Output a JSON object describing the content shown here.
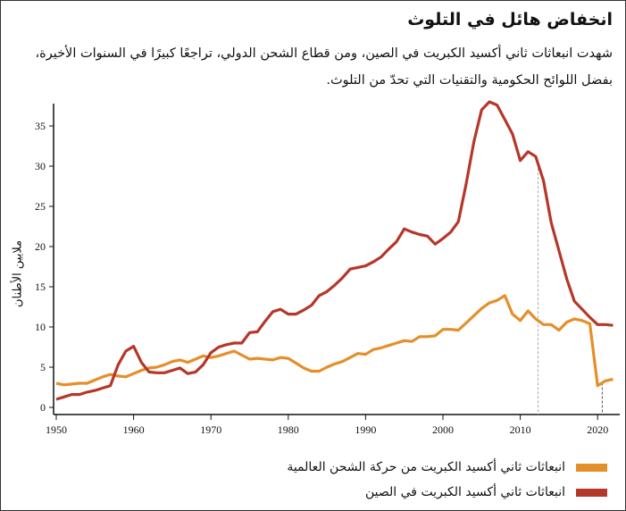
{
  "title": "انخفاض هائل في التلوث",
  "subtitle": "شهدت انبعاثات ثاني أكسيد الكبريت في الصين، ومن قطاع الشحن الدولي، تراجعًا كبيرًا في السنوات الأخيرة، بفضل اللوائح الحكومية والتقنيات التي تحدّ من التلوث.",
  "colors": {
    "china": "#b5372a",
    "shipping": "#e58f2a",
    "reference": "#999999"
  },
  "chart_data": {
    "type": "line",
    "title": "انخفاض هائل في التلوث",
    "xlabel": "",
    "ylabel": "ملايين الأطنان",
    "xlim": [
      1950,
      2022
    ],
    "ylim": [
      0,
      38
    ],
    "xticks": [
      1950,
      1960,
      1970,
      1980,
      1990,
      2000,
      2010,
      2020
    ],
    "yticks": [
      0,
      5,
      10,
      15,
      20,
      25,
      30,
      35
    ],
    "grid": false,
    "legend": "bottom-right",
    "x": [
      1950,
      1951,
      1952,
      1953,
      1954,
      1955,
      1956,
      1957,
      1958,
      1959,
      1960,
      1961,
      1962,
      1963,
      1964,
      1965,
      1966,
      1967,
      1968,
      1969,
      1970,
      1971,
      1972,
      1973,
      1974,
      1975,
      1976,
      1977,
      1978,
      1979,
      1980,
      1981,
      1982,
      1983,
      1984,
      1985,
      1986,
      1987,
      1988,
      1989,
      1990,
      1991,
      1992,
      1993,
      1994,
      1995,
      1996,
      1997,
      1998,
      1999,
      2000,
      2001,
      2002,
      2003,
      2004,
      2005,
      2006,
      2007,
      2008,
      2009,
      2010,
      2011,
      2012,
      2013,
      2014,
      2015,
      2016,
      2017,
      2018,
      2019,
      2020,
      2021,
      2022
    ],
    "series": [
      {
        "name": "انبعاثات ثاني أكسيد الكبريت من حركة الشحن العالمية",
        "key": "shipping",
        "values": [
          3.0,
          2.8,
          2.9,
          3.0,
          3.0,
          3.4,
          3.8,
          4.1,
          3.9,
          3.8,
          4.2,
          4.6,
          4.9,
          5.0,
          5.3,
          5.7,
          5.9,
          5.6,
          6.0,
          6.4,
          6.2,
          6.4,
          6.7,
          7.0,
          6.5,
          6.0,
          6.1,
          6.0,
          5.9,
          6.2,
          6.1,
          5.5,
          4.9,
          4.5,
          4.5,
          5.0,
          5.4,
          5.7,
          6.2,
          6.7,
          6.6,
          7.2,
          7.4,
          7.7,
          8.0,
          8.3,
          8.2,
          8.8,
          8.8,
          8.9,
          9.7,
          9.7,
          9.6,
          10.5,
          11.4,
          12.3,
          13.0,
          13.3,
          13.9,
          11.6,
          10.8,
          12.0,
          11.0,
          10.3,
          10.3,
          9.6,
          10.6,
          11.0,
          10.8,
          10.4,
          2.7,
          3.3,
          3.5
        ]
      },
      {
        "name": "انبعاثات ثاني أكسيد الكبريت في الصين",
        "key": "china",
        "values": [
          1.0,
          1.3,
          1.6,
          1.6,
          1.9,
          2.1,
          2.4,
          2.7,
          5.3,
          7.0,
          7.6,
          5.6,
          4.4,
          4.3,
          4.3,
          4.6,
          4.9,
          4.2,
          4.4,
          5.3,
          6.8,
          7.5,
          7.8,
          8.0,
          8.0,
          9.3,
          9.4,
          10.7,
          11.9,
          12.2,
          11.6,
          11.6,
          12.1,
          12.7,
          13.9,
          14.4,
          15.2,
          16.1,
          17.2,
          17.4,
          17.6,
          18.1,
          18.7,
          19.7,
          20.6,
          22.2,
          21.8,
          21.5,
          21.3,
          20.3,
          21.0,
          21.8,
          23.1,
          27.8,
          33.0,
          37.0,
          38.0,
          37.6,
          35.8,
          34.0,
          30.7,
          31.8,
          31.2,
          28.2,
          23.0,
          19.5,
          16.0,
          13.2,
          12.2,
          11.2,
          10.3,
          10.3,
          10.2
        ]
      }
    ],
    "reference_lines": [
      {
        "x": 2012.3,
        "series": "china"
      },
      {
        "x": 2020.6,
        "series": "shipping"
      }
    ]
  }
}
